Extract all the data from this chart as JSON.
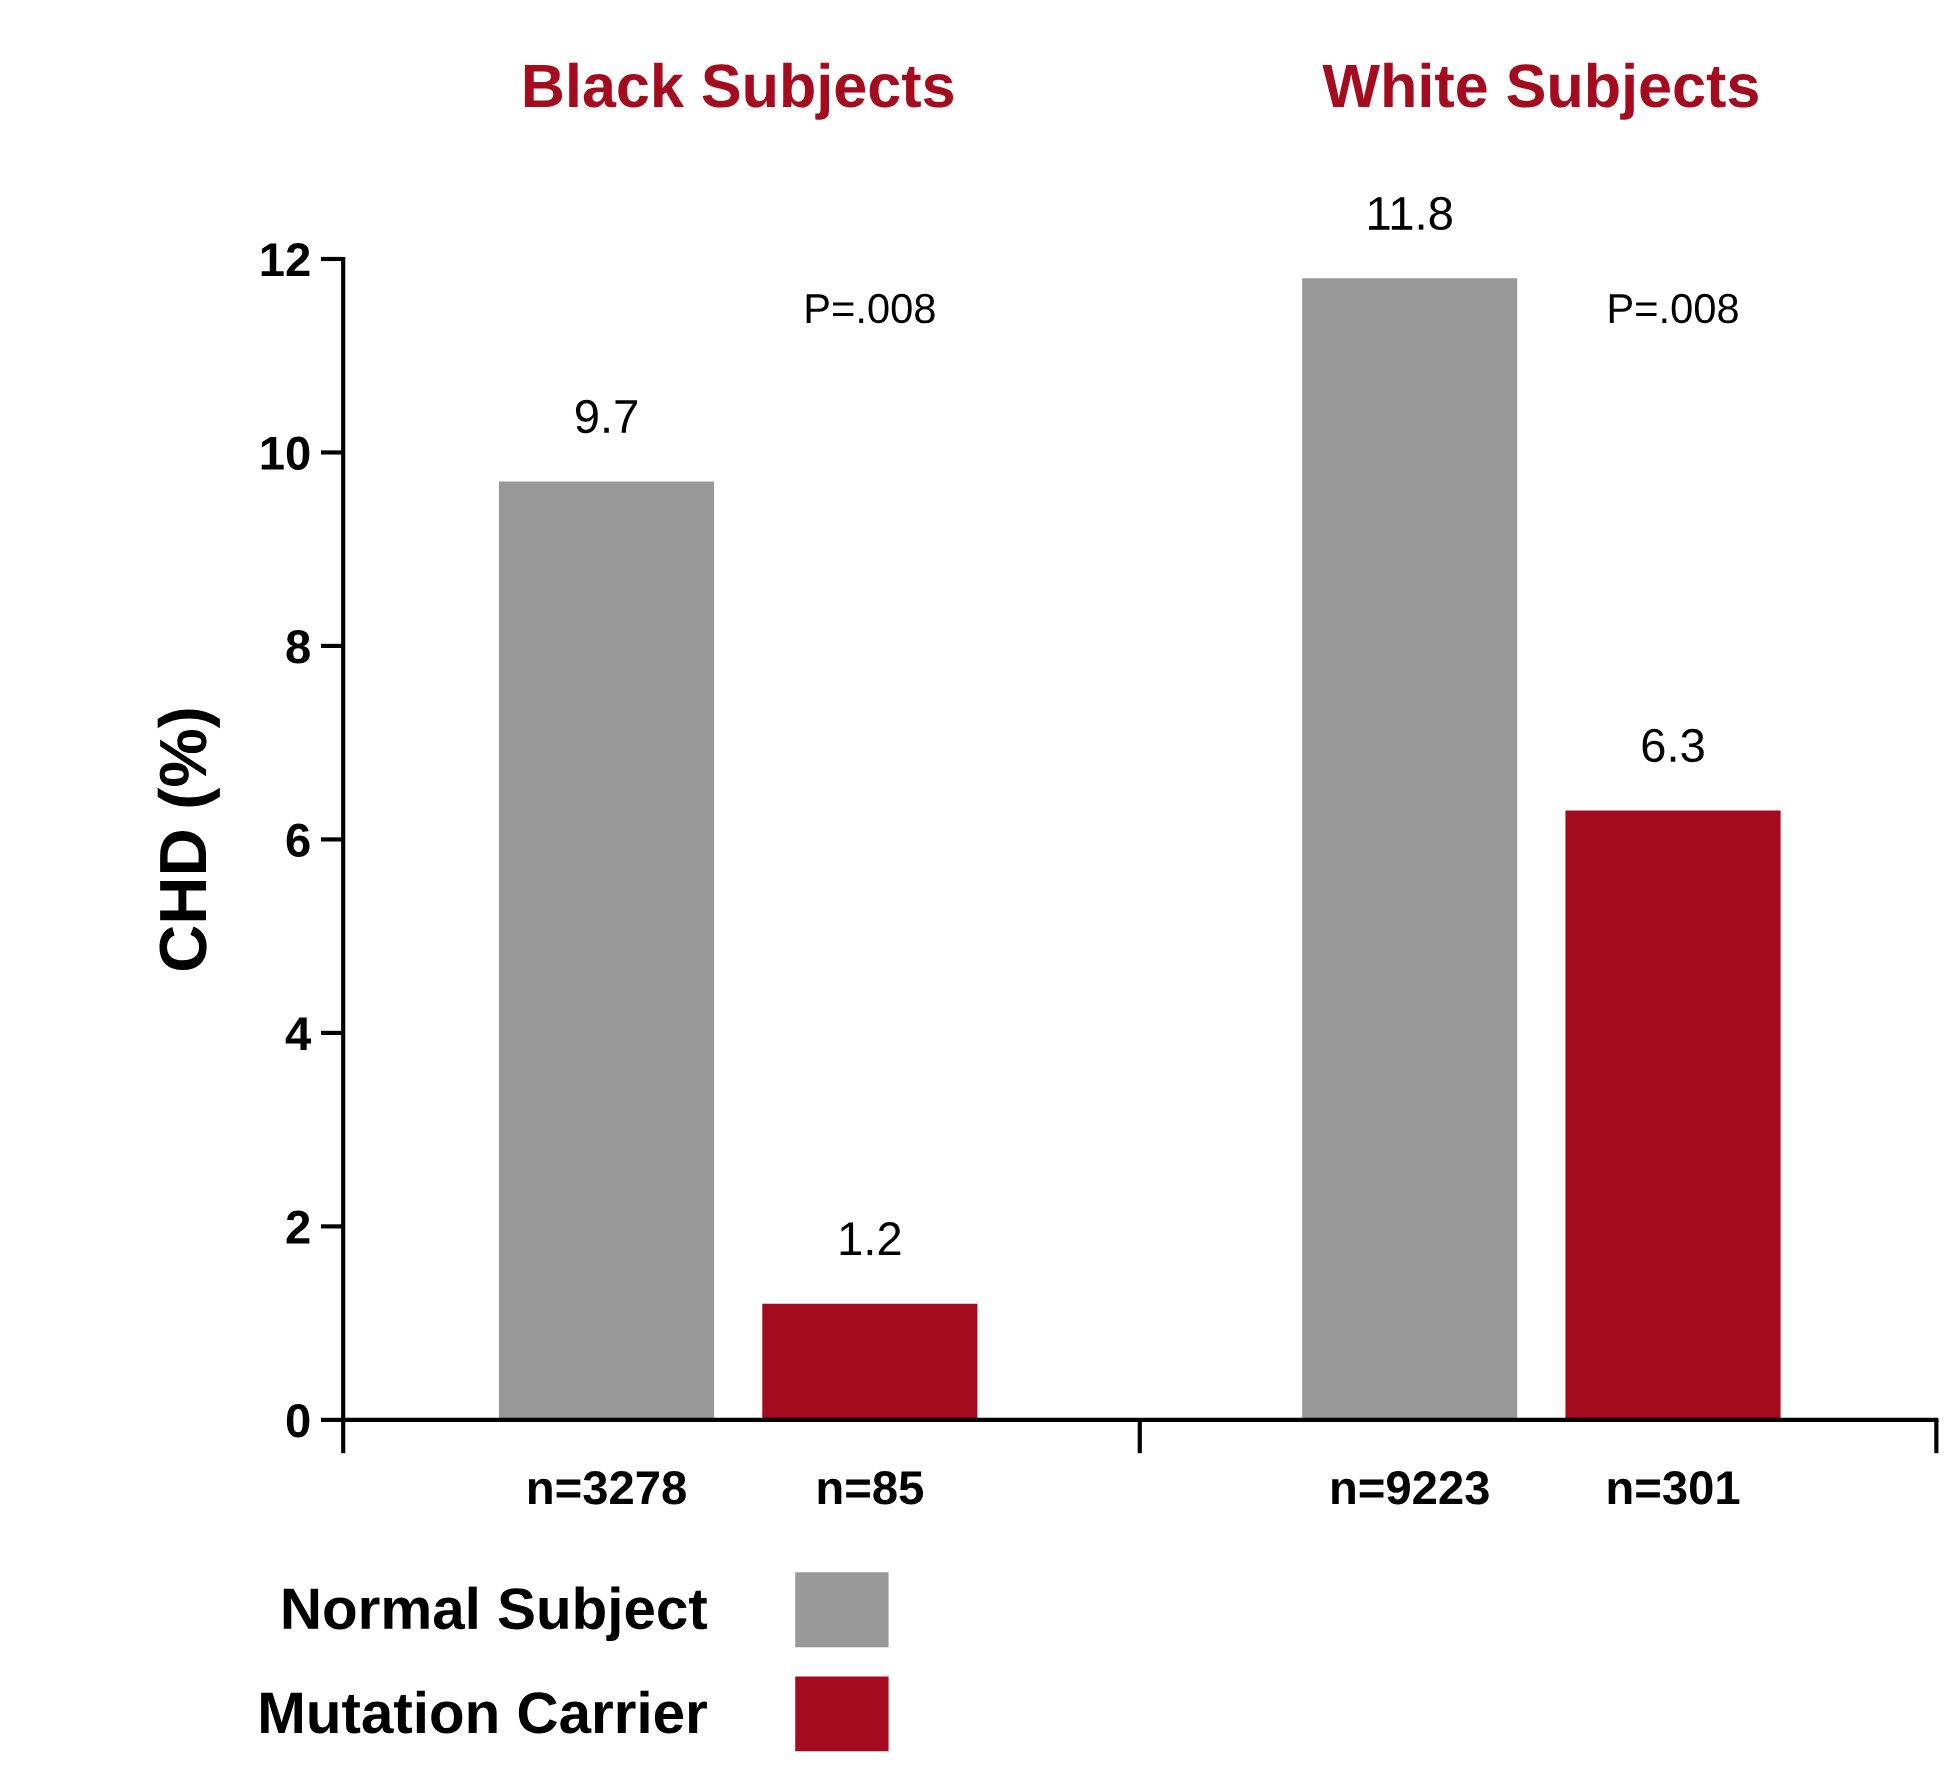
{
  "chart_data": {
    "type": "bar",
    "ylabel": "CHD (%)",
    "categories": [
      "n=3278",
      "n=85",
      "n=9223",
      "n=301"
    ],
    "series": [
      {
        "name": "Normal Subject",
        "color": "#999999",
        "values": [
          9.7,
          null,
          11.8,
          null
        ]
      },
      {
        "name": "Mutation Carrier",
        "color": "#a50b1e",
        "values": [
          null,
          1.2,
          null,
          6.3
        ]
      }
    ],
    "ylim": [
      0,
      12
    ],
    "yticks": [
      0,
      2,
      4,
      6,
      8,
      10,
      12
    ],
    "grid": false,
    "legend": "bottom left",
    "data_labels": true,
    "annotations": [
      "Black Subjects",
      "White Subjects",
      "P=.008",
      "P=.008"
    ]
  }
}
